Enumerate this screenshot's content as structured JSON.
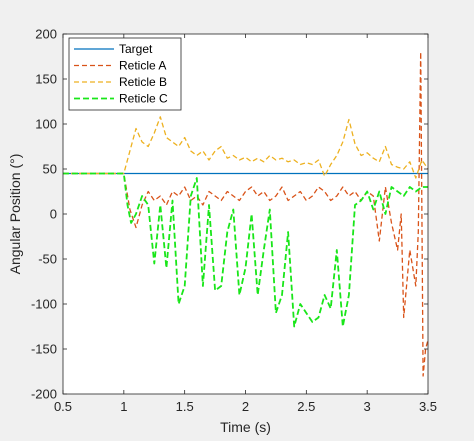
{
  "chart_data": {
    "type": "line",
    "title": "",
    "xlabel": "Time (s)",
    "ylabel": "Angular Position (°)",
    "xlim": [
      0.5,
      3.5
    ],
    "ylim": [
      -200,
      200
    ],
    "xticks": [
      "0.5",
      "1",
      "1.5",
      "2",
      "2.5",
      "3",
      "3.5"
    ],
    "yticks": [
      "-200",
      "-150",
      "-100",
      "-50",
      "0",
      "50",
      "100",
      "150",
      "200"
    ],
    "grid": false,
    "legend_position": "top-left",
    "series": [
      {
        "name": "Target",
        "color": "#0072bd",
        "style": "solid",
        "x": [
          0.5,
          3.5
        ],
        "y": [
          45,
          45
        ]
      },
      {
        "name": "Reticle A",
        "color": "#d95319",
        "style": "dashed",
        "x": [
          0.5,
          1.0,
          1.05,
          1.1,
          1.15,
          1.2,
          1.25,
          1.3,
          1.35,
          1.4,
          1.45,
          1.5,
          1.55,
          1.6,
          1.65,
          1.7,
          1.75,
          1.8,
          1.85,
          1.9,
          1.95,
          2.0,
          2.05,
          2.1,
          2.15,
          2.2,
          2.25,
          2.3,
          2.35,
          2.4,
          2.45,
          2.5,
          2.55,
          2.6,
          2.65,
          2.7,
          2.75,
          2.8,
          2.85,
          2.9,
          2.95,
          3.0,
          3.05,
          3.1,
          3.15,
          3.2,
          3.25,
          3.28,
          3.3,
          3.35,
          3.4,
          3.42,
          3.44,
          3.46,
          3.48,
          3.5
        ],
        "y": [
          45,
          45,
          5,
          -15,
          10,
          25,
          15,
          20,
          10,
          25,
          20,
          30,
          15,
          20,
          10,
          25,
          20,
          15,
          25,
          20,
          15,
          25,
          30,
          20,
          25,
          15,
          20,
          30,
          15,
          20,
          25,
          15,
          20,
          30,
          25,
          15,
          20,
          30,
          20,
          25,
          15,
          25,
          20,
          -30,
          30,
          -10,
          -40,
          0,
          -115,
          -40,
          -80,
          -20,
          180,
          -180,
          -150,
          -140
        ]
      },
      {
        "name": "Reticle B",
        "color": "#edb120",
        "style": "dashed",
        "x": [
          0.5,
          1.0,
          1.05,
          1.1,
          1.15,
          1.2,
          1.25,
          1.3,
          1.35,
          1.4,
          1.45,
          1.5,
          1.55,
          1.6,
          1.65,
          1.7,
          1.75,
          1.8,
          1.85,
          1.9,
          1.95,
          2.0,
          2.05,
          2.1,
          2.15,
          2.2,
          2.25,
          2.3,
          2.35,
          2.4,
          2.45,
          2.5,
          2.55,
          2.6,
          2.65,
          2.7,
          2.75,
          2.8,
          2.85,
          2.9,
          2.95,
          3.0,
          3.05,
          3.1,
          3.15,
          3.2,
          3.25,
          3.3,
          3.35,
          3.4,
          3.45,
          3.5
        ],
        "y": [
          45,
          45,
          70,
          95,
          80,
          75,
          90,
          108,
          85,
          80,
          75,
          85,
          70,
          65,
          70,
          60,
          70,
          75,
          62,
          65,
          60,
          63,
          58,
          62,
          58,
          65,
          60,
          62,
          58,
          60,
          55,
          57,
          55,
          60,
          42,
          55,
          65,
          80,
          105,
          78,
          65,
          68,
          62,
          58,
          75,
          55,
          52,
          50,
          58,
          40,
          60,
          50
        ]
      },
      {
        "name": "Reticle C",
        "color": "#19e619",
        "style": "dashed",
        "x": [
          0.5,
          1.0,
          1.03,
          1.06,
          1.1,
          1.15,
          1.2,
          1.25,
          1.3,
          1.35,
          1.4,
          1.45,
          1.5,
          1.55,
          1.6,
          1.65,
          1.7,
          1.75,
          1.8,
          1.85,
          1.9,
          1.95,
          2.0,
          2.05,
          2.1,
          2.15,
          2.2,
          2.25,
          2.3,
          2.35,
          2.4,
          2.45,
          2.5,
          2.55,
          2.6,
          2.65,
          2.7,
          2.75,
          2.8,
          2.85,
          2.9,
          2.95,
          3.0,
          3.05,
          3.1,
          3.15,
          3.2,
          3.25,
          3.3,
          3.35,
          3.4,
          3.45,
          3.5
        ],
        "y": [
          45,
          45,
          10,
          -10,
          0,
          20,
          10,
          -55,
          10,
          -60,
          15,
          -100,
          -80,
          20,
          40,
          -80,
          10,
          -85,
          -80,
          -20,
          5,
          -90,
          -60,
          0,
          -90,
          -40,
          5,
          -110,
          -90,
          -20,
          -125,
          -100,
          -110,
          -120,
          -115,
          -90,
          -105,
          -40,
          -125,
          -90,
          10,
          15,
          25,
          5,
          25,
          0,
          30,
          25,
          20,
          30,
          25,
          30,
          30
        ]
      }
    ]
  }
}
